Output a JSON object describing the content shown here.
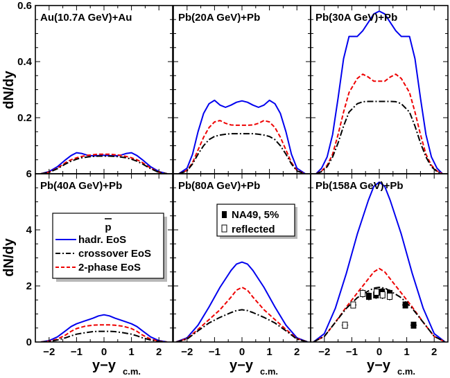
{
  "figure": {
    "ylabel": "dN/dy",
    "xlabel_main": "y−y",
    "xlabel_sub": "c.m."
  },
  "colors": {
    "hadr": "#0000ee",
    "crossover": "#000000",
    "twophase": "#ee0000",
    "shadow": "#b8b8b8"
  },
  "legend_model": {
    "header": "p",
    "entries": [
      {
        "key": "hadr",
        "label": "hadr. EoS"
      },
      {
        "key": "crossover",
        "label": "crossover EoS"
      },
      {
        "key": "twophase",
        "label": "2-phase EoS"
      }
    ]
  },
  "legend_data": {
    "entries": [
      {
        "marker": "filled",
        "label": "NA49, 5%"
      },
      {
        "marker": "open",
        "label": "reflected"
      }
    ]
  },
  "chart_data": [
    {
      "type": "line",
      "panel": "top-left",
      "title": "Au(10.7A GeV)+Au",
      "xlim": [
        -2.5,
        2.5
      ],
      "ylim": [
        0,
        0.6
      ],
      "yticks": [
        {
          "v": 0.2,
          "label": "0.2"
        },
        {
          "v": 0.4,
          "label": "0.4"
        },
        {
          "v": 0.6,
          "label": "0.6"
        },
        {
          "v": 0,
          "label": "6"
        }
      ],
      "x": [
        -2.3,
        -2.0,
        -1.7,
        -1.4,
        -1.2,
        -1.0,
        -0.8,
        -0.6,
        -0.4,
        -0.2,
        0.0,
        0.2,
        0.4,
        0.6,
        0.8,
        1.0,
        1.2,
        1.4,
        1.7,
        2.0,
        2.3
      ],
      "series": [
        {
          "key": "hadr",
          "name": "hadr. EoS",
          "dash": "solid",
          "values": [
            0.0,
            0.008,
            0.025,
            0.05,
            0.065,
            0.075,
            0.072,
            0.066,
            0.064,
            0.065,
            0.066,
            0.065,
            0.064,
            0.066,
            0.072,
            0.075,
            0.065,
            0.05,
            0.025,
            0.008,
            0.0
          ]
        },
        {
          "key": "twophase",
          "name": "2-phase EoS",
          "dash": "dashed",
          "values": [
            0.0,
            0.006,
            0.02,
            0.04,
            0.05,
            0.057,
            0.062,
            0.066,
            0.068,
            0.07,
            0.07,
            0.07,
            0.068,
            0.066,
            0.062,
            0.057,
            0.05,
            0.04,
            0.02,
            0.006,
            0.0
          ]
        },
        {
          "key": "crossover",
          "name": "crossover EoS",
          "dash": "dashdot",
          "values": [
            0.0,
            0.005,
            0.018,
            0.035,
            0.045,
            0.052,
            0.057,
            0.06,
            0.062,
            0.063,
            0.063,
            0.063,
            0.062,
            0.06,
            0.057,
            0.052,
            0.045,
            0.035,
            0.018,
            0.005,
            0.0
          ]
        }
      ]
    },
    {
      "type": "line",
      "panel": "top-middle",
      "title": "Pb(20A GeV)+Pb",
      "xlim": [
        -2.5,
        2.5
      ],
      "ylim": [
        0,
        0.6
      ],
      "x": [
        -2.3,
        -2.0,
        -1.8,
        -1.6,
        -1.4,
        -1.2,
        -1.0,
        -0.8,
        -0.6,
        -0.4,
        -0.2,
        0.0,
        0.2,
        0.4,
        0.6,
        0.8,
        1.0,
        1.2,
        1.4,
        1.6,
        1.8,
        2.0,
        2.3
      ],
      "series": [
        {
          "key": "hadr",
          "name": "hadr. EoS",
          "dash": "solid",
          "values": [
            0.0,
            0.02,
            0.07,
            0.15,
            0.215,
            0.25,
            0.262,
            0.245,
            0.237,
            0.245,
            0.255,
            0.26,
            0.255,
            0.245,
            0.237,
            0.245,
            0.262,
            0.25,
            0.215,
            0.15,
            0.07,
            0.02,
            0.0
          ]
        },
        {
          "key": "twophase",
          "name": "2-phase EoS",
          "dash": "dashed",
          "values": [
            0.0,
            0.012,
            0.04,
            0.085,
            0.13,
            0.165,
            0.185,
            0.19,
            0.18,
            0.174,
            0.173,
            0.173,
            0.173,
            0.174,
            0.18,
            0.19,
            0.185,
            0.165,
            0.13,
            0.085,
            0.04,
            0.012,
            0.0
          ]
        },
        {
          "key": "crossover",
          "name": "crossover EoS",
          "dash": "dashdot",
          "values": [
            0.0,
            0.01,
            0.035,
            0.07,
            0.1,
            0.122,
            0.133,
            0.138,
            0.141,
            0.143,
            0.143,
            0.143,
            0.143,
            0.143,
            0.141,
            0.138,
            0.133,
            0.122,
            0.1,
            0.07,
            0.035,
            0.01,
            0.0
          ]
        }
      ]
    },
    {
      "type": "line",
      "panel": "top-right",
      "title": "Pb(30A GeV)+Pb",
      "xlim": [
        -2.5,
        2.5
      ],
      "ylim": [
        0,
        0.6
      ],
      "x": [
        -2.3,
        -2.1,
        -1.9,
        -1.7,
        -1.5,
        -1.3,
        -1.1,
        -0.8,
        -0.6,
        -0.4,
        -0.2,
        0.0,
        0.2,
        0.4,
        0.6,
        0.8,
        1.1,
        1.3,
        1.5,
        1.7,
        1.9,
        2.1,
        2.3
      ],
      "series": [
        {
          "key": "hadr",
          "name": "hadr. EoS",
          "dash": "solid",
          "values": [
            0.0,
            0.02,
            0.06,
            0.14,
            0.27,
            0.41,
            0.49,
            0.49,
            0.51,
            0.54,
            0.57,
            0.58,
            0.57,
            0.54,
            0.51,
            0.49,
            0.49,
            0.41,
            0.27,
            0.14,
            0.06,
            0.02,
            0.0
          ]
        },
        {
          "key": "twophase",
          "name": "2-phase EoS",
          "dash": "dashed",
          "values": [
            0.0,
            0.01,
            0.03,
            0.07,
            0.14,
            0.22,
            0.29,
            0.34,
            0.355,
            0.345,
            0.33,
            0.33,
            0.33,
            0.345,
            0.355,
            0.34,
            0.29,
            0.22,
            0.14,
            0.07,
            0.03,
            0.01,
            0.0
          ]
        },
        {
          "key": "crossover",
          "name": "crossover EoS",
          "dash": "dashdot",
          "values": [
            0.0,
            0.008,
            0.025,
            0.06,
            0.11,
            0.17,
            0.22,
            0.25,
            0.257,
            0.258,
            0.258,
            0.258,
            0.258,
            0.258,
            0.257,
            0.25,
            0.22,
            0.17,
            0.11,
            0.06,
            0.025,
            0.008,
            0.0
          ]
        }
      ]
    },
    {
      "type": "line",
      "panel": "bottom-left",
      "title": "Pb(40A GeV)+Pb",
      "xlim": [
        -2.5,
        2.5
      ],
      "ylim": [
        0,
        6
      ],
      "yticks": [
        {
          "v": 0,
          "label": "0"
        },
        {
          "v": 2,
          "label": "2"
        },
        {
          "v": 4,
          "label": "4"
        }
      ],
      "xticks": [
        -2,
        -1,
        0,
        1,
        2
      ],
      "x": [
        -2.3,
        -2.0,
        -1.7,
        -1.4,
        -1.2,
        -1.0,
        -0.7,
        -0.4,
        -0.2,
        0.0,
        0.2,
        0.4,
        0.7,
        1.0,
        1.2,
        1.4,
        1.7,
        2.0,
        2.3
      ],
      "series": [
        {
          "key": "hadr",
          "name": "hadr. EoS",
          "dash": "solid",
          "values": [
            0.0,
            0.05,
            0.18,
            0.4,
            0.55,
            0.65,
            0.75,
            0.85,
            0.93,
            0.97,
            0.93,
            0.85,
            0.75,
            0.65,
            0.55,
            0.4,
            0.18,
            0.05,
            0.0
          ]
        },
        {
          "key": "twophase",
          "name": "2-phase EoS",
          "dash": "dashed",
          "values": [
            0.0,
            0.03,
            0.1,
            0.25,
            0.38,
            0.48,
            0.56,
            0.6,
            0.61,
            0.61,
            0.61,
            0.6,
            0.56,
            0.48,
            0.38,
            0.25,
            0.1,
            0.03,
            0.0
          ]
        },
        {
          "key": "crossover",
          "name": "crossover EoS",
          "dash": "dashdot",
          "values": [
            0.0,
            0.02,
            0.07,
            0.15,
            0.22,
            0.28,
            0.33,
            0.37,
            0.38,
            0.38,
            0.38,
            0.37,
            0.33,
            0.28,
            0.22,
            0.15,
            0.07,
            0.02,
            0.0
          ]
        }
      ]
    },
    {
      "type": "line",
      "panel": "bottom-middle",
      "title": "Pb(80A GeV)+Pb",
      "xlim": [
        -2.5,
        2.5
      ],
      "ylim": [
        0,
        6
      ],
      "xticks": [
        -2,
        -1,
        0,
        1,
        2
      ],
      "x": [
        -2.4,
        -2.0,
        -1.6,
        -1.2,
        -0.8,
        -0.4,
        -0.2,
        0.0,
        0.2,
        0.4,
        0.8,
        1.2,
        1.6,
        2.0,
        2.4
      ],
      "series": [
        {
          "key": "hadr",
          "name": "hadr. EoS",
          "dash": "solid",
          "values": [
            0.0,
            0.15,
            0.6,
            1.25,
            1.95,
            2.55,
            2.78,
            2.85,
            2.78,
            2.55,
            1.95,
            1.25,
            0.6,
            0.15,
            0.0
          ]
        },
        {
          "key": "twophase",
          "name": "2-phase EoS",
          "dash": "dashed",
          "values": [
            0.0,
            0.12,
            0.45,
            0.8,
            1.15,
            1.6,
            1.85,
            1.95,
            1.85,
            1.6,
            1.15,
            0.8,
            0.45,
            0.12,
            0.0
          ]
        },
        {
          "key": "crossover",
          "name": "crossover EoS",
          "dash": "dashdot",
          "values": [
            0.0,
            0.1,
            0.4,
            0.68,
            0.88,
            1.05,
            1.12,
            1.15,
            1.12,
            1.05,
            0.88,
            0.68,
            0.4,
            0.1,
            0.0
          ]
        }
      ]
    },
    {
      "type": "line",
      "panel": "bottom-right",
      "title": "Pb(158A GeV)+Pb",
      "xlim": [
        -2.5,
        2.5
      ],
      "ylim": [
        0,
        6
      ],
      "xticks": [
        -2,
        -1,
        0,
        1,
        2
      ],
      "x": [
        -2.4,
        -2.0,
        -1.6,
        -1.2,
        -0.8,
        -0.4,
        -0.2,
        0.0,
        0.2,
        0.4,
        0.8,
        1.2,
        1.6,
        2.0,
        2.4
      ],
      "series": [
        {
          "key": "hadr",
          "name": "hadr. EoS",
          "dash": "solid",
          "values": [
            0.0,
            0.3,
            1.2,
            2.45,
            3.85,
            5.05,
            5.55,
            5.7,
            5.55,
            5.05,
            3.85,
            2.45,
            1.2,
            0.3,
            0.0
          ]
        },
        {
          "key": "twophase",
          "name": "2-phase EoS",
          "dash": "dashed",
          "values": [
            0.0,
            0.2,
            0.7,
            1.25,
            1.75,
            2.25,
            2.5,
            2.62,
            2.5,
            2.25,
            1.75,
            1.25,
            0.7,
            0.2,
            0.0
          ]
        },
        {
          "key": "crossover",
          "name": "crossover EoS",
          "dash": "dashdot",
          "values": [
            0.0,
            0.2,
            0.7,
            1.2,
            1.58,
            1.82,
            1.92,
            1.95,
            1.92,
            1.82,
            1.58,
            1.2,
            0.7,
            0.2,
            0.0
          ]
        }
      ],
      "points": [
        {
          "name": "NA49, 5%",
          "marker": "filled",
          "data": [
            {
              "x": -0.38,
              "y": 1.63,
              "xerr": 0.1,
              "yerr": 0.15
            },
            {
              "x": -0.12,
              "y": 1.68,
              "xerr": 0.1,
              "yerr": 0.15
            },
            {
              "x": 0.1,
              "y": 1.78,
              "xerr": 0.1,
              "yerr": 0.15
            },
            {
              "x": 0.38,
              "y": 1.73,
              "xerr": 0.1,
              "yerr": 0.15
            },
            {
              "x": 0.95,
              "y": 1.32,
              "xerr": 0.12,
              "yerr": 0.12
            },
            {
              "x": 1.25,
              "y": 0.6,
              "xerr": 0.12,
              "yerr": 0.08
            }
          ]
        },
        {
          "name": "reflected",
          "marker": "open",
          "data": [
            {
              "x": -1.25,
              "y": 0.6,
              "xerr": 0.12,
              "yerr": 0.08
            },
            {
              "x": -0.95,
              "y": 1.32,
              "xerr": 0.12,
              "yerr": 0.12
            },
            {
              "x": -0.6,
              "y": 1.73,
              "xerr": 0.1,
              "yerr": 0.15
            },
            {
              "x": -0.1,
              "y": 1.78,
              "xerr": 0.1,
              "yerr": 0.15
            },
            {
              "x": 0.12,
              "y": 1.68,
              "xerr": 0.1,
              "yerr": 0.15
            },
            {
              "x": 0.38,
              "y": 1.63,
              "xerr": 0.1,
              "yerr": 0.15
            }
          ]
        }
      ]
    }
  ]
}
